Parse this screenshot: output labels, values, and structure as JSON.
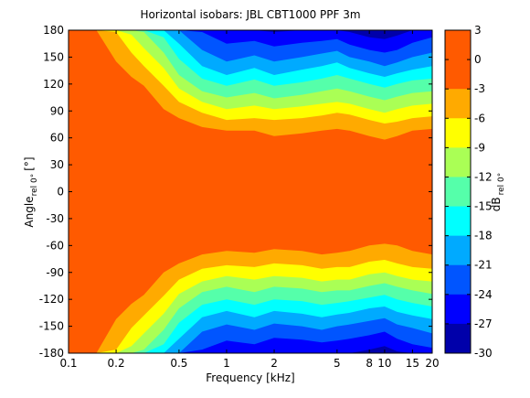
{
  "chart_data": {
    "type": "heatmap",
    "title": "Horizontal isobars: JBL  CBT1000 PPF  3m",
    "xlabel": "Frequency [kHz]",
    "ylabel_main": "Angle",
    "ylabel_sub": "rel 0°",
    "ylabel_unit": "[°]",
    "x_scale": "log",
    "xlim": [
      0.1,
      20
    ],
    "ylim": [
      -180,
      180
    ],
    "x_ticks": [
      0.1,
      0.2,
      0.5,
      1,
      2,
      5,
      8,
      10,
      15,
      20
    ],
    "x_tick_labels": [
      "0.1",
      "0.2",
      "0.5",
      "1",
      "2",
      "5",
      "8",
      "10",
      "15",
      "20"
    ],
    "y_ticks": [
      180,
      150,
      120,
      90,
      60,
      30,
      0,
      -30,
      -60,
      -90,
      -120,
      -150,
      -180
    ],
    "y_tick_labels": [
      "180",
      "150",
      "120",
      "90",
      "60",
      "30",
      "0",
      "-30",
      "-60",
      "-90",
      "-120",
      "-150",
      "-180"
    ],
    "colorbar": {
      "label_main": "dB",
      "label_sub": "rel 0°",
      "range": [
        -30,
        3
      ],
      "ticks": [
        3,
        0,
        -3,
        -6,
        -9,
        -12,
        -15,
        -18,
        -21,
        -24,
        -27,
        -30
      ],
      "tick_labels": [
        "3",
        "0",
        "-3",
        "-6",
        "-9",
        "-12",
        "-15",
        "-18",
        "-21",
        "-24",
        "-27",
        "-30"
      ],
      "bands": [
        {
          "range": [
            0,
            3
          ],
          "color": "#FF5A00"
        },
        {
          "range": [
            -3,
            0
          ],
          "color": "#FF5A00"
        },
        {
          "range": [
            -6,
            -3
          ],
          "color": "#FFAA00"
        },
        {
          "range": [
            -9,
            -6
          ],
          "color": "#FFFF00"
        },
        {
          "range": [
            -12,
            -9
          ],
          "color": "#AAFF55"
        },
        {
          "range": [
            -15,
            -12
          ],
          "color": "#55FFAA"
        },
        {
          "range": [
            -18,
            -15
          ],
          "color": "#00FFFF"
        },
        {
          "range": [
            -21,
            -18
          ],
          "color": "#00AAFF"
        },
        {
          "range": [
            -24,
            -21
          ],
          "color": "#0055FF"
        },
        {
          "range": [
            -27,
            -24
          ],
          "color": "#0000FF"
        },
        {
          "range": [
            -30,
            -27
          ],
          "color": "#0000AA"
        }
      ]
    },
    "contours": {
      "frequencies_khz": [
        0.1,
        0.15,
        0.2,
        0.25,
        0.3,
        0.4,
        0.5,
        0.7,
        1,
        1.5,
        2,
        3,
        4,
        5,
        6,
        8,
        10,
        12,
        15,
        20
      ],
      "levels_db": [
        -3,
        -6,
        -9,
        -12,
        -15,
        -18,
        -21,
        -24,
        -27
      ],
      "upper_angle_deg": [
        [
          180,
          180,
          145,
          128,
          118,
          92,
          82,
          72,
          68,
          68,
          62,
          65,
          68,
          70,
          68,
          62,
          58,
          62,
          68,
          70
        ],
        [
          180,
          180,
          178,
          155,
          140,
          118,
          100,
          88,
          80,
          82,
          80,
          82,
          85,
          88,
          86,
          80,
          76,
          78,
          82,
          84
        ],
        [
          180,
          180,
          180,
          175,
          160,
          138,
          115,
          100,
          92,
          96,
          92,
          95,
          98,
          100,
          98,
          92,
          88,
          92,
          96,
          98
        ],
        [
          180,
          180,
          180,
          180,
          178,
          155,
          130,
          112,
          105,
          110,
          104,
          108,
          112,
          115,
          112,
          106,
          102,
          106,
          110,
          112
        ],
        [
          180,
          180,
          180,
          180,
          180,
          172,
          148,
          126,
          118,
          125,
          118,
          122,
          126,
          130,
          126,
          120,
          116,
          120,
          124,
          126
        ],
        [
          180,
          180,
          180,
          180,
          180,
          180,
          165,
          140,
          130,
          138,
          130,
          136,
          140,
          144,
          138,
          132,
          128,
          132,
          136,
          140
        ],
        [
          180,
          180,
          180,
          180,
          180,
          180,
          180,
          158,
          145,
          152,
          145,
          150,
          154,
          157,
          150,
          145,
          140,
          144,
          150,
          155
        ],
        [
          180,
          180,
          180,
          180,
          180,
          180,
          180,
          178,
          165,
          168,
          162,
          166,
          168,
          170,
          164,
          158,
          155,
          158,
          166,
          172
        ],
        [
          180,
          180,
          180,
          180,
          180,
          180,
          180,
          180,
          180,
          180,
          178,
          180,
          180,
          180,
          178,
          172,
          170,
          174,
          180,
          180
        ]
      ],
      "lower_angle_deg": [
        [
          -180,
          -180,
          -142,
          -125,
          -115,
          -90,
          -80,
          -70,
          -66,
          -68,
          -64,
          -66,
          -70,
          -68,
          -66,
          -60,
          -58,
          -60,
          -66,
          -70
        ],
        [
          -180,
          -180,
          -176,
          -152,
          -138,
          -116,
          -98,
          -86,
          -82,
          -84,
          -80,
          -82,
          -86,
          -84,
          -84,
          -78,
          -76,
          -80,
          -84,
          -86
        ],
        [
          -180,
          -180,
          -180,
          -172,
          -158,
          -136,
          -114,
          -100,
          -94,
          -98,
          -94,
          -96,
          -100,
          -98,
          -98,
          -92,
          -90,
          -94,
          -98,
          -100
        ],
        [
          -180,
          -180,
          -180,
          -180,
          -176,
          -154,
          -130,
          -112,
          -106,
          -112,
          -106,
          -108,
          -112,
          -110,
          -110,
          -105,
          -102,
          -106,
          -110,
          -114
        ],
        [
          -180,
          -180,
          -180,
          -180,
          -180,
          -170,
          -146,
          -126,
          -120,
          -126,
          -120,
          -122,
          -126,
          -124,
          -122,
          -118,
          -115,
          -120,
          -124,
          -128
        ],
        [
          -180,
          -180,
          -180,
          -180,
          -180,
          -180,
          -164,
          -140,
          -133,
          -140,
          -133,
          -136,
          -140,
          -137,
          -135,
          -130,
          -128,
          -134,
          -138,
          -142
        ],
        [
          -180,
          -180,
          -180,
          -180,
          -180,
          -180,
          -180,
          -156,
          -148,
          -154,
          -147,
          -150,
          -154,
          -150,
          -148,
          -144,
          -141,
          -148,
          -152,
          -158
        ],
        [
          -180,
          -180,
          -180,
          -180,
          -180,
          -180,
          -180,
          -176,
          -166,
          -170,
          -163,
          -165,
          -168,
          -166,
          -164,
          -160,
          -156,
          -164,
          -170,
          -174
        ],
        [
          -180,
          -180,
          -180,
          -180,
          -180,
          -180,
          -180,
          -180,
          -180,
          -180,
          -180,
          -180,
          -180,
          -180,
          -180,
          -176,
          -172,
          -178,
          -180,
          -180
        ]
      ]
    }
  }
}
